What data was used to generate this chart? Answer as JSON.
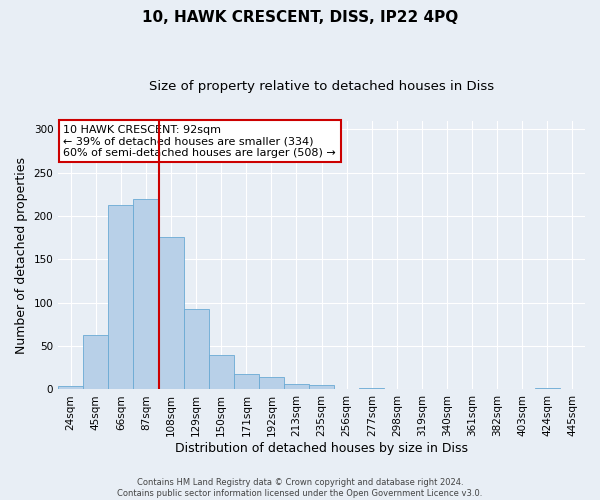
{
  "title": "10, HAWK CRESCENT, DISS, IP22 4PQ",
  "subtitle": "Size of property relative to detached houses in Diss",
  "xlabel": "Distribution of detached houses by size in Diss",
  "ylabel": "Number of detached properties",
  "categories": [
    "24sqm",
    "45sqm",
    "66sqm",
    "87sqm",
    "108sqm",
    "129sqm",
    "150sqm",
    "171sqm",
    "192sqm",
    "213sqm",
    "235sqm",
    "256sqm",
    "277sqm",
    "298sqm",
    "319sqm",
    "340sqm",
    "361sqm",
    "382sqm",
    "403sqm",
    "424sqm",
    "445sqm"
  ],
  "values": [
    4,
    63,
    213,
    220,
    176,
    93,
    40,
    18,
    14,
    6,
    5,
    0,
    2,
    0,
    0,
    0,
    0,
    0,
    0,
    2,
    0
  ],
  "bar_color": "#b8d0e8",
  "bar_edge_color": "#6aaad4",
  "bar_width": 1.0,
  "ylim": [
    0,
    310
  ],
  "yticks": [
    0,
    50,
    100,
    150,
    200,
    250,
    300
  ],
  "red_line_x": 3.5,
  "red_line_color": "#cc0000",
  "annotation_text": "10 HAWK CRESCENT: 92sqm\n← 39% of detached houses are smaller (334)\n60% of semi-detached houses are larger (508) →",
  "annotation_box_color": "#ffffff",
  "annotation_box_edge": "#cc0000",
  "footer_line1": "Contains HM Land Registry data © Crown copyright and database right 2024.",
  "footer_line2": "Contains public sector information licensed under the Open Government Licence v3.0.",
  "background_color": "#e8eef5",
  "plot_bg_color": "#e8eef5",
  "title_fontsize": 11,
  "subtitle_fontsize": 9.5,
  "tick_fontsize": 7.5,
  "ylabel_fontsize": 9,
  "xlabel_fontsize": 9,
  "annotation_fontsize": 8,
  "footer_fontsize": 6
}
